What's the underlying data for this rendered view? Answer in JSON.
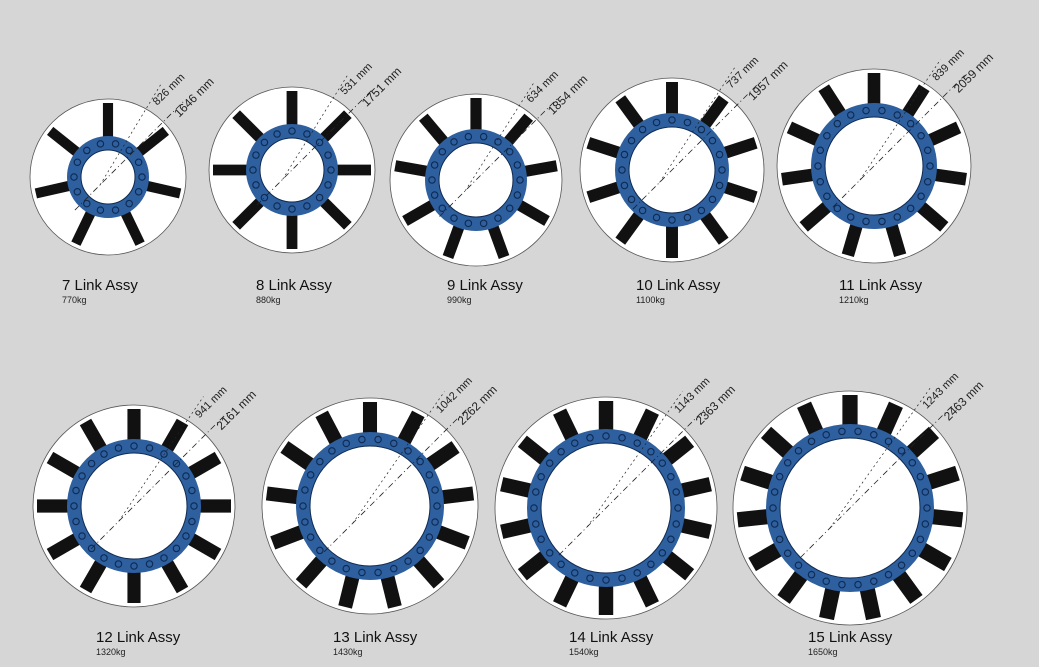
{
  "colors": {
    "background": "#d6d6d6",
    "disc": "#ffffff",
    "ring": "#2e5f9e",
    "spoke": "#111111"
  },
  "assemblies": [
    {
      "id": "7",
      "label": "7 Link Assy",
      "weight": "770kg",
      "inner_dim": "826 mm",
      "outer_dim": "1646 mm",
      "links": 7
    },
    {
      "id": "8",
      "label": "8 Link Assy",
      "weight": "880kg",
      "inner_dim": "531 mm",
      "outer_dim": "1751 mm",
      "links": 8
    },
    {
      "id": "9",
      "label": "9 Link Assy",
      "weight": "990kg",
      "inner_dim": "634 mm",
      "outer_dim": "1854 mm",
      "links": 9
    },
    {
      "id": "10",
      "label": "10 Link Assy",
      "weight": "1100kg",
      "inner_dim": "737 mm",
      "outer_dim": "1957 mm",
      "links": 10
    },
    {
      "id": "11",
      "label": "11 Link Assy",
      "weight": "1210kg",
      "inner_dim": "839 mm",
      "outer_dim": "2059 mm",
      "links": 11
    },
    {
      "id": "12",
      "label": "12 Link Assy",
      "weight": "1320kg",
      "inner_dim": "941 mm",
      "outer_dim": "2161 mm",
      "links": 12
    },
    {
      "id": "13",
      "label": "13 Link Assy",
      "weight": "1430kg",
      "inner_dim": "1042 mm",
      "outer_dim": "2262 mm",
      "links": 13
    },
    {
      "id": "14",
      "label": "14 Link Assy",
      "weight": "1540kg",
      "inner_dim": "1143 mm",
      "outer_dim": "2363 mm",
      "links": 14
    },
    {
      "id": "15",
      "label": "15 Link Assy",
      "weight": "1650kg",
      "inner_dim": "1243 mm",
      "outer_dim": "2463 mm",
      "links": 15
    }
  ]
}
